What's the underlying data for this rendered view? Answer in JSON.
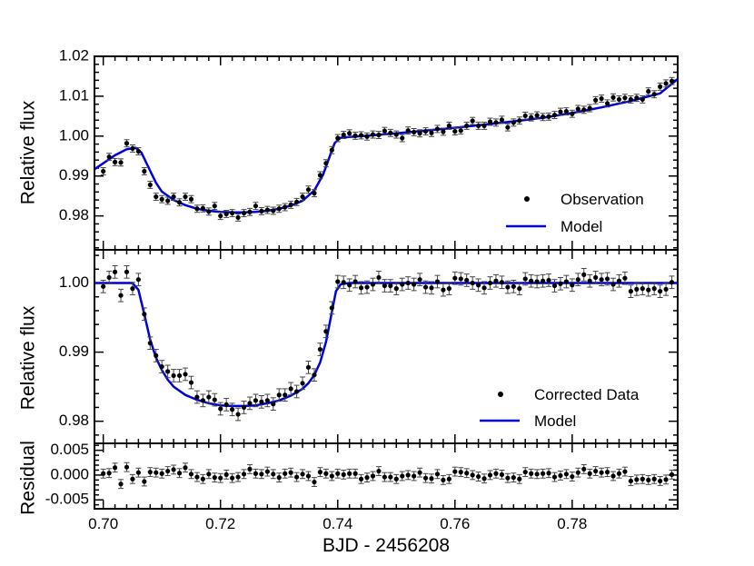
{
  "chart_data": [
    {
      "panel": "top",
      "type": "scatter",
      "ylabel": "Relative flux",
      "xlim": [
        0.6985,
        0.798
      ],
      "ylim": [
        0.9715,
        1.02
      ],
      "yticks": [
        0.98,
        0.99,
        1.0,
        1.01,
        1.02
      ],
      "ytick_labels": [
        "0.98",
        "0.99",
        "1.00",
        "1.01",
        "1.02"
      ],
      "legend_position": "lower-right",
      "series": [
        {
          "name": "Observation",
          "kind": "points-with-errorbars",
          "color": "#000000",
          "yerr": 0.0009,
          "x": [
            0.7,
            0.701,
            0.702,
            0.703,
            0.704,
            0.705,
            0.706,
            0.707,
            0.708,
            0.709,
            0.71,
            0.711,
            0.712,
            0.713,
            0.714,
            0.715,
            0.716,
            0.717,
            0.718,
            0.719,
            0.72,
            0.721,
            0.722,
            0.723,
            0.724,
            0.725,
            0.726,
            0.727,
            0.728,
            0.729,
            0.73,
            0.731,
            0.732,
            0.733,
            0.734,
            0.735,
            0.736,
            0.737,
            0.738,
            0.739,
            0.74,
            0.741,
            0.742,
            0.743,
            0.744,
            0.745,
            0.746,
            0.747,
            0.748,
            0.749,
            0.75,
            0.751,
            0.752,
            0.753,
            0.754,
            0.755,
            0.756,
            0.757,
            0.758,
            0.759,
            0.76,
            0.761,
            0.762,
            0.763,
            0.764,
            0.765,
            0.766,
            0.767,
            0.768,
            0.769,
            0.77,
            0.771,
            0.772,
            0.773,
            0.774,
            0.775,
            0.776,
            0.777,
            0.778,
            0.779,
            0.78,
            0.781,
            0.782,
            0.783,
            0.784,
            0.785,
            0.786,
            0.787,
            0.788,
            0.789,
            0.79,
            0.791,
            0.792,
            0.793,
            0.794,
            0.795,
            0.796,
            0.797
          ],
          "y": [
            0.9912,
            0.9948,
            0.9935,
            0.9934,
            0.9982,
            0.9969,
            0.9962,
            0.9912,
            0.9878,
            0.9848,
            0.9842,
            0.9838,
            0.9848,
            0.9834,
            0.9848,
            0.9842,
            0.9818,
            0.9819,
            0.9811,
            0.9825,
            0.98,
            0.9805,
            0.9807,
            0.9796,
            0.9807,
            0.981,
            0.9825,
            0.9812,
            0.9815,
            0.9813,
            0.9818,
            0.9822,
            0.9828,
            0.9835,
            0.9848,
            0.9866,
            0.9857,
            0.9902,
            0.9932,
            0.9965,
            0.9995,
            1.0003,
            1.0007,
            1.0001,
            1.0002,
            0.9999,
            1.0004,
            1.0003,
            1.0013,
            1.0008,
            1.0004,
            0.9995,
            1.0014,
            1.001,
            1.0007,
            1.0012,
            1.0008,
            1.0018,
            1.0011,
            1.0026,
            1.0012,
            1.0014,
            1.0026,
            1.0038,
            1.0026,
            1.0026,
            1.0036,
            1.0034,
            1.0041,
            1.0022,
            1.0034,
            1.0039,
            1.0051,
            1.0047,
            1.0052,
            1.0048,
            1.0049,
            1.0053,
            1.0061,
            1.0062,
            1.0056,
            1.0068,
            1.0066,
            1.007,
            1.009,
            1.0094,
            1.0082,
            1.0097,
            1.0092,
            1.0096,
            1.0092,
            1.0096,
            1.0092,
            1.0112,
            1.0105,
            1.0124,
            1.0132,
            1.0138
          ]
        },
        {
          "name": "Model",
          "kind": "line",
          "color": "#0000d8",
          "x": [
            0.6985,
            0.7,
            0.702,
            0.704,
            0.7055,
            0.7065,
            0.708,
            0.709,
            0.71,
            0.712,
            0.714,
            0.716,
            0.718,
            0.72,
            0.722,
            0.724,
            0.726,
            0.728,
            0.73,
            0.732,
            0.734,
            0.736,
            0.7375,
            0.7385,
            0.7395,
            0.7405,
            0.742,
            0.745,
            0.75,
            0.755,
            0.76,
            0.765,
            0.77,
            0.775,
            0.78,
            0.785,
            0.79,
            0.795,
            0.798
          ],
          "y": [
            0.9917,
            0.9932,
            0.9952,
            0.9967,
            0.9971,
            0.9959,
            0.9913,
            0.9883,
            0.9861,
            0.984,
            0.9827,
            0.9818,
            0.9813,
            0.981,
            0.9809,
            0.9809,
            0.981,
            0.9813,
            0.9818,
            0.9826,
            0.9838,
            0.9864,
            0.9903,
            0.9944,
            0.9983,
            0.9996,
            0.9998,
            1.0001,
            1.0007,
            1.0014,
            1.0021,
            1.0029,
            1.0037,
            1.0046,
            1.0058,
            1.0072,
            1.0088,
            1.0107,
            1.0143
          ]
        }
      ]
    },
    {
      "panel": "middle",
      "type": "scatter",
      "ylabel": "Relative flux",
      "xlim": [
        0.6985,
        0.798
      ],
      "ylim": [
        0.9768,
        1.0048
      ],
      "yticks": [
        0.98,
        0.99,
        1.0
      ],
      "ytick_labels": [
        "0.98",
        "0.99",
        "1.00"
      ],
      "legend_position": "lower-right",
      "series": [
        {
          "name": "Corrected Data",
          "kind": "points-with-errorbars",
          "color": "#000000",
          "yerr": 0.0009,
          "x": [
            0.7,
            0.701,
            0.702,
            0.703,
            0.704,
            0.705,
            0.706,
            0.707,
            0.708,
            0.709,
            0.71,
            0.711,
            0.712,
            0.713,
            0.714,
            0.715,
            0.716,
            0.717,
            0.718,
            0.719,
            0.72,
            0.721,
            0.722,
            0.723,
            0.724,
            0.725,
            0.726,
            0.727,
            0.728,
            0.729,
            0.73,
            0.731,
            0.732,
            0.733,
            0.734,
            0.735,
            0.736,
            0.737,
            0.738,
            0.739,
            0.74,
            0.741,
            0.742,
            0.743,
            0.744,
            0.745,
            0.746,
            0.747,
            0.748,
            0.749,
            0.75,
            0.751,
            0.752,
            0.753,
            0.754,
            0.755,
            0.756,
            0.757,
            0.758,
            0.759,
            0.76,
            0.761,
            0.762,
            0.763,
            0.764,
            0.765,
            0.766,
            0.767,
            0.768,
            0.769,
            0.77,
            0.771,
            0.772,
            0.773,
            0.774,
            0.775,
            0.776,
            0.777,
            0.778,
            0.779,
            0.78,
            0.781,
            0.782,
            0.783,
            0.784,
            0.785,
            0.786,
            0.787,
            0.788,
            0.789,
            0.79,
            0.791,
            0.792,
            0.793,
            0.794,
            0.795,
            0.796,
            0.797
          ],
          "y": [
            0.9995,
            1.0008,
            1.0016,
            0.9982,
            1.0016,
            0.9992,
            1.0005,
            0.9955,
            0.9913,
            0.9895,
            0.9879,
            0.9872,
            0.9866,
            0.9866,
            0.9868,
            0.9856,
            0.9835,
            0.983,
            0.9835,
            0.9831,
            0.9818,
            0.9824,
            0.9817,
            0.981,
            0.982,
            0.9826,
            0.983,
            0.9828,
            0.983,
            0.9825,
            0.9838,
            0.9838,
            0.9847,
            0.9843,
            0.9855,
            0.9878,
            0.9867,
            0.9904,
            0.993,
            0.9964,
            1.0002,
            1.0001,
            0.9997,
            1.0002,
            0.9993,
            0.9994,
            0.9998,
            1.0008,
            0.9996,
            0.9996,
            0.9992,
            0.9998,
            1.0,
            0.9998,
            1.0005,
            0.9994,
            0.9993,
            1.0002,
            0.999,
            0.9992,
            1.0007,
            1.0006,
            1.0004,
            1.0,
            0.9997,
            0.9993,
            1.0,
            1.0003,
            1.0001,
            0.9994,
            0.9995,
            0.9992,
            1.0006,
            1.0003,
            1.0002,
            1.0003,
            1.0004,
            0.9996,
            0.9999,
            1.0002,
            0.9997,
            1.0005,
            1.0012,
            1.0003,
            1.0008,
            1.0005,
            1.0006,
            0.9998,
            1.0003,
            1.0007,
            0.9988,
            0.9991,
            0.9992,
            0.999,
            0.9992,
            0.9988,
            0.9991,
            1.0001
          ]
        },
        {
          "name": "Model",
          "kind": "line",
          "color": "#0000d8",
          "x": [
            0.6985,
            0.705,
            0.706,
            0.707,
            0.708,
            0.709,
            0.71,
            0.711,
            0.712,
            0.714,
            0.716,
            0.718,
            0.72,
            0.722,
            0.724,
            0.726,
            0.728,
            0.73,
            0.732,
            0.734,
            0.735,
            0.736,
            0.737,
            0.738,
            0.739,
            0.7397,
            0.7405,
            0.742,
            0.76,
            0.78,
            0.798
          ],
          "y": [
            1.0,
            1.0,
            0.999,
            0.9955,
            0.9918,
            0.9892,
            0.9874,
            0.986,
            0.985,
            0.9838,
            0.9831,
            0.9826,
            0.9823,
            0.9822,
            0.9822,
            0.9823,
            0.9826,
            0.983,
            0.9837,
            0.9847,
            0.9855,
            0.9867,
            0.9885,
            0.9915,
            0.9958,
            0.9988,
            0.9998,
            1.0,
            1.0,
            1.0,
            1.0
          ]
        }
      ]
    },
    {
      "panel": "bottom",
      "type": "scatter",
      "ylabel": "Residual",
      "xlabel": "BJD - 2456208",
      "xlim": [
        0.6985,
        0.798
      ],
      "ylim": [
        -0.0068,
        0.0064
      ],
      "yticks": [
        -0.005,
        0.0,
        0.005
      ],
      "ytick_labels": [
        "-0.005",
        "0.000",
        "0.005"
      ],
      "xticks": [
        0.7,
        0.72,
        0.74,
        0.76,
        0.78
      ],
      "xtick_labels": [
        "0.70",
        "0.72",
        "0.74",
        "0.76",
        "0.78"
      ],
      "series": [
        {
          "name": "",
          "kind": "points-with-errorbars",
          "color": "#000000",
          "yerr": 0.0009,
          "x": [
            0.7,
            0.701,
            0.702,
            0.703,
            0.704,
            0.705,
            0.706,
            0.707,
            0.708,
            0.709,
            0.71,
            0.711,
            0.712,
            0.713,
            0.714,
            0.715,
            0.716,
            0.717,
            0.718,
            0.719,
            0.72,
            0.721,
            0.722,
            0.723,
            0.724,
            0.725,
            0.726,
            0.727,
            0.728,
            0.729,
            0.73,
            0.731,
            0.732,
            0.733,
            0.734,
            0.735,
            0.736,
            0.737,
            0.738,
            0.739,
            0.74,
            0.741,
            0.742,
            0.743,
            0.744,
            0.745,
            0.746,
            0.747,
            0.748,
            0.749,
            0.75,
            0.751,
            0.752,
            0.753,
            0.754,
            0.755,
            0.756,
            0.757,
            0.758,
            0.759,
            0.76,
            0.761,
            0.762,
            0.763,
            0.764,
            0.765,
            0.766,
            0.767,
            0.768,
            0.769,
            0.77,
            0.771,
            0.772,
            0.773,
            0.774,
            0.775,
            0.776,
            0.777,
            0.778,
            0.779,
            0.78,
            0.781,
            0.782,
            0.783,
            0.784,
            0.785,
            0.786,
            0.787,
            0.788,
            0.789,
            0.79,
            0.791,
            0.792,
            0.793,
            0.794,
            0.795,
            0.796,
            0.797
          ],
          "y": [
            0.0003,
            0.0004,
            0.0015,
            -0.0018,
            0.0016,
            -0.0008,
            0.0005,
            -0.0013,
            0.0006,
            0.0005,
            0.0003,
            0.0008,
            0.0011,
            0.0004,
            0.0015,
            0.0002,
            -0.0004,
            -0.0008,
            0.0002,
            -0.0005,
            -0.0006,
            0.0001,
            -0.0006,
            -0.0004,
            0.0002,
            0.0012,
            0.0003,
            0.0002,
            0.0007,
            0.0002,
            -0.0005,
            0.0003,
            0.0005,
            -0.0004,
            0.0002,
            -0.0002,
            -0.0014,
            0.0006,
            0.0003,
            -0.0002,
            0.0003,
            0.0001,
            0.0003,
            0.0003,
            -0.0008,
            -0.0005,
            -0.0002,
            0.0008,
            -0.0004,
            -0.0004,
            -0.0008,
            -0.0002,
            0.0,
            -0.0002,
            0.0005,
            -0.0006,
            -0.0007,
            0.0002,
            -0.001,
            -0.0008,
            0.0007,
            0.0006,
            0.0004,
            0.0,
            -0.0003,
            -0.0007,
            0.0,
            0.0003,
            0.0001,
            -0.0006,
            -0.0005,
            -0.0008,
            0.0006,
            0.0003,
            0.0002,
            0.0003,
            0.0004,
            -0.0004,
            -0.0001,
            0.0002,
            -0.0003,
            0.0005,
            0.0012,
            0.0003,
            0.0008,
            0.0005,
            0.0006,
            -0.0002,
            0.0003,
            0.0007,
            -0.0012,
            -0.0009,
            -0.0008,
            -0.001,
            -0.0008,
            -0.0012,
            -0.0009,
            0.0001
          ]
        }
      ]
    }
  ]
}
